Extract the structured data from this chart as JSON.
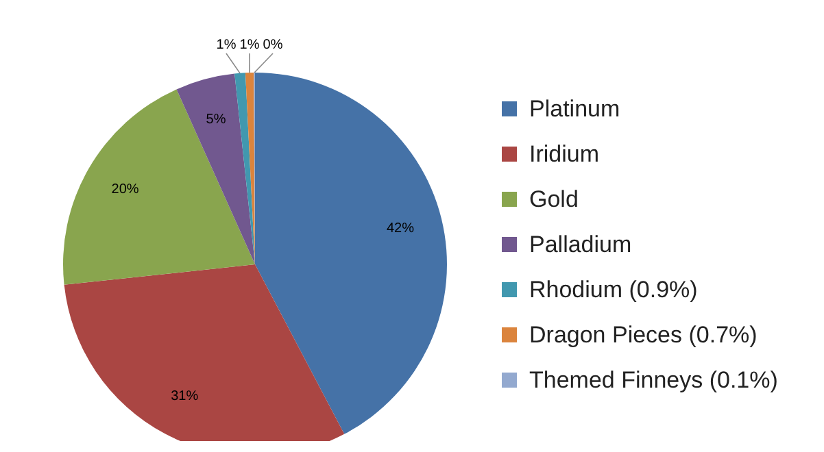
{
  "chart_data": {
    "type": "pie",
    "categories": [
      "Platinum",
      "Iridium",
      "Gold",
      "Palladium",
      "Rhodium (0.9%)",
      "Dragon Pieces (0.7%)",
      "Themed Finneys (0.1%)"
    ],
    "values": [
      42.3,
      31,
      20,
      5,
      0.9,
      0.7,
      0.1
    ],
    "colors": [
      "#4572a7",
      "#aa4643",
      "#89a54e",
      "#71588f",
      "#4198af",
      "#db843d",
      "#93a9cf"
    ],
    "value_labels": [
      "42%",
      "31%",
      "20%",
      "5%",
      "1%",
      "1%",
      "0%"
    ],
    "legend": "right"
  }
}
